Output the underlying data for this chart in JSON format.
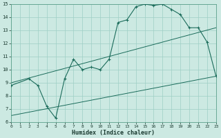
{
  "title": "",
  "xlabel": "Humidex (Indice chaleur)",
  "xlim": [
    0,
    23
  ],
  "ylim": [
    6,
    15
  ],
  "xticks": [
    0,
    1,
    2,
    3,
    4,
    5,
    6,
    7,
    8,
    9,
    10,
    11,
    12,
    13,
    14,
    15,
    16,
    17,
    18,
    19,
    20,
    21,
    22,
    23
  ],
  "yticks": [
    6,
    7,
    8,
    9,
    10,
    11,
    12,
    13,
    14,
    15
  ],
  "bg_color": "#cce9e2",
  "line_color": "#1a6b5a",
  "grid_color": "#9ecfc5",
  "curve1_x": [
    0,
    2,
    3,
    4,
    5,
    6,
    7,
    8,
    9,
    10,
    11,
    12,
    13,
    14,
    15,
    16,
    17,
    18,
    19,
    20,
    21,
    22,
    23
  ],
  "curve1_y": [
    8.8,
    9.3,
    8.8,
    7.2,
    6.3,
    9.3,
    10.8,
    10.0,
    10.2,
    10.0,
    10.8,
    13.6,
    13.8,
    14.8,
    15.0,
    14.9,
    15.0,
    14.6,
    14.2,
    13.2,
    13.2,
    12.1,
    9.5
  ],
  "line2_x": [
    0,
    23
  ],
  "line2_y": [
    9.0,
    13.2
  ],
  "line3_x": [
    0,
    23
  ],
  "line3_y": [
    6.5,
    9.5
  ],
  "figsize": [
    3.2,
    2.0
  ],
  "dpi": 100
}
